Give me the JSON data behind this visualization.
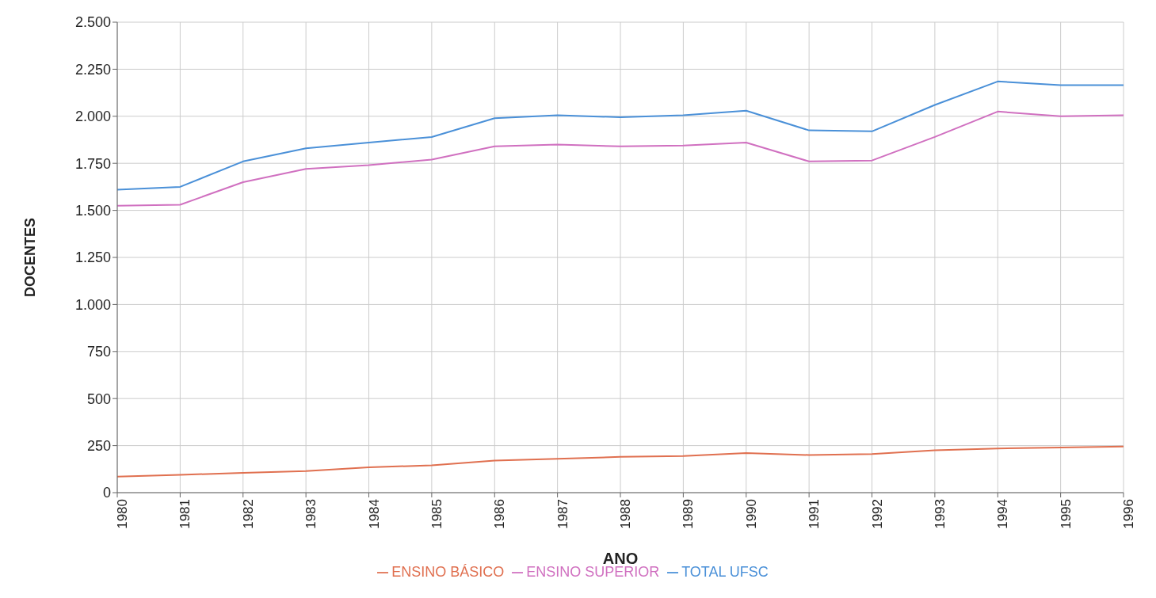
{
  "chart_data": {
    "type": "line",
    "xlabel": "ANO",
    "ylabel": "DOCENTES",
    "categories": [
      "1980",
      "1981",
      "1982",
      "1983",
      "1984",
      "1985",
      "1986",
      "1987",
      "1988",
      "1989",
      "1990",
      "1991",
      "1992",
      "1993",
      "1994",
      "1995",
      "1996"
    ],
    "series": [
      {
        "name": "ENSINO BÁSICO",
        "color": "#e07050",
        "values": [
          85,
          95,
          105,
          115,
          135,
          145,
          170,
          180,
          190,
          195,
          210,
          200,
          205,
          225,
          235,
          240,
          245
        ]
      },
      {
        "name": "ENSINO SUPERIOR",
        "color": "#d070c0",
        "values": [
          1525,
          1530,
          1650,
          1720,
          1740,
          1770,
          1840,
          1850,
          1840,
          1845,
          1860,
          1760,
          1765,
          1890,
          2025,
          2000,
          2005
        ]
      },
      {
        "name": "TOTAL UFSC",
        "color": "#4a90d8",
        "values": [
          1610,
          1625,
          1760,
          1830,
          1860,
          1890,
          1990,
          2005,
          1995,
          2005,
          2030,
          1925,
          1920,
          2060,
          2185,
          2165,
          2165
        ]
      }
    ],
    "ylim": [
      0,
      2500
    ],
    "yticks": [
      0,
      250,
      500,
      750,
      {
        "value": 1000,
        "label": "1.000"
      },
      {
        "value": 1250,
        "label": "1.250"
      },
      {
        "value": 1500,
        "label": "1.500"
      },
      {
        "value": 1750,
        "label": "1.750"
      },
      {
        "value": 2000,
        "label": "2.000"
      },
      {
        "value": 2250,
        "label": "2.250"
      },
      {
        "value": 2500,
        "label": "2.500"
      }
    ],
    "grid": true,
    "legend": "bottom",
    "marker": "none",
    "line_style": "solid"
  }
}
